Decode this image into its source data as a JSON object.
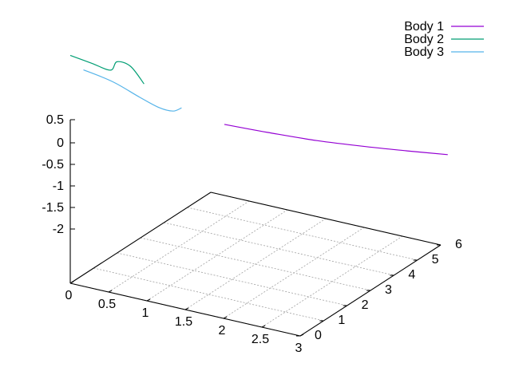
{
  "chart_data": {
    "type": "line",
    "projection": "3d",
    "title": "",
    "xlabel": "",
    "ylabel": "",
    "zlabel": "",
    "grid": true,
    "legend_position": "top-right",
    "xlim": [
      0,
      3
    ],
    "ylim": [
      0,
      6
    ],
    "zlim": [
      -2,
      0.5
    ],
    "x_ticks": [
      "0",
      "0.5",
      "1",
      "1.5",
      "2",
      "2.5",
      "3"
    ],
    "y_ticks": [
      "0",
      "1",
      "2",
      "3",
      "4",
      "5",
      "6"
    ],
    "z_ticks": [
      "0.5",
      "0",
      "-0.5",
      "-1",
      "-1.5",
      "-2"
    ],
    "series": [
      {
        "name": "Body 1",
        "color": "#9400d3",
        "points": [
          [
            0.3,
            5.6,
            1.4
          ],
          [
            0.8,
            5.8,
            1.45
          ],
          [
            1.4,
            5.95,
            1.45
          ],
          [
            2.0,
            6.1,
            1.4
          ],
          [
            2.5,
            6.2,
            1.33
          ],
          [
            3.0,
            6.3,
            1.25
          ]
        ]
      },
      {
        "name": "Body 2",
        "color": "#009e73",
        "points": [
          [
            0.0,
            0.0,
            -2.0
          ],
          [
            0.1,
            0.6,
            -1.65
          ],
          [
            0.25,
            0.9,
            -1.45
          ],
          [
            0.35,
            0.85,
            -1.7
          ],
          [
            0.45,
            1.1,
            -1.55
          ],
          [
            0.55,
            1.35,
            -1.1
          ]
        ]
      },
      {
        "name": "Body 3",
        "color": "#56b4e9",
        "points": [
          [
            0.05,
            0.4,
            -1.55
          ],
          [
            0.25,
            1.0,
            -1.15
          ],
          [
            0.45,
            1.5,
            -0.7
          ],
          [
            0.6,
            1.85,
            -0.4
          ],
          [
            0.7,
            2.1,
            -0.28
          ],
          [
            0.78,
            2.2,
            -0.35
          ]
        ]
      }
    ]
  }
}
